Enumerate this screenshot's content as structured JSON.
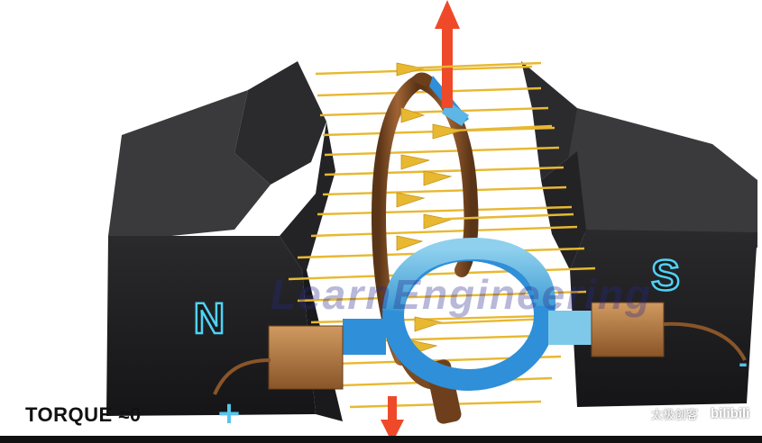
{
  "diagram": {
    "north_label": "N",
    "south_label": "S",
    "plus_terminal": "+",
    "minus_terminal": "-",
    "torque_label": "TORQUE ≈0",
    "watermark": "LearnEngineering",
    "platform_text": "太极创客",
    "platform_logo": "bilibili"
  },
  "colors": {
    "magnet": "#1c1c1e",
    "field_line": "#e8b830",
    "coil": "#7a4a22",
    "commutator": "#2f8fd8",
    "brush": "#b87a42",
    "force_arrow": "#ee4a2a",
    "pole_letter": "#4fd2f5"
  }
}
